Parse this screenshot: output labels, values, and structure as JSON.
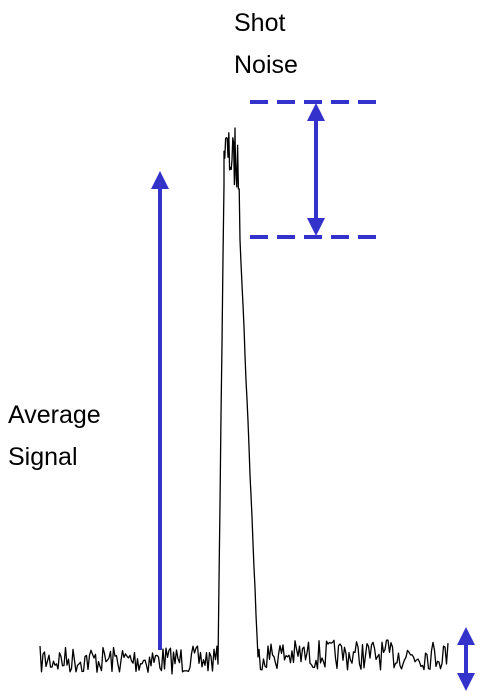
{
  "labels": {
    "shot_noise": "Shot\nNoise",
    "average_signal": "Average\nSignal"
  },
  "colors": {
    "annotation": "#3333cc",
    "trace": "#000000",
    "background": "#ffffff"
  }
}
